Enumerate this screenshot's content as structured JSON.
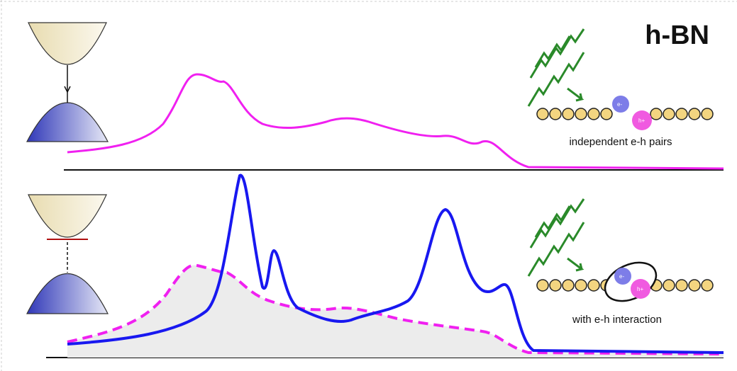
{
  "title": "h-BN",
  "panels": [
    {
      "label": "independent e-h pairs"
    },
    {
      "label": "with e-h interaction"
    }
  ],
  "particles": {
    "electron": "e-",
    "hole": "h+"
  }
}
